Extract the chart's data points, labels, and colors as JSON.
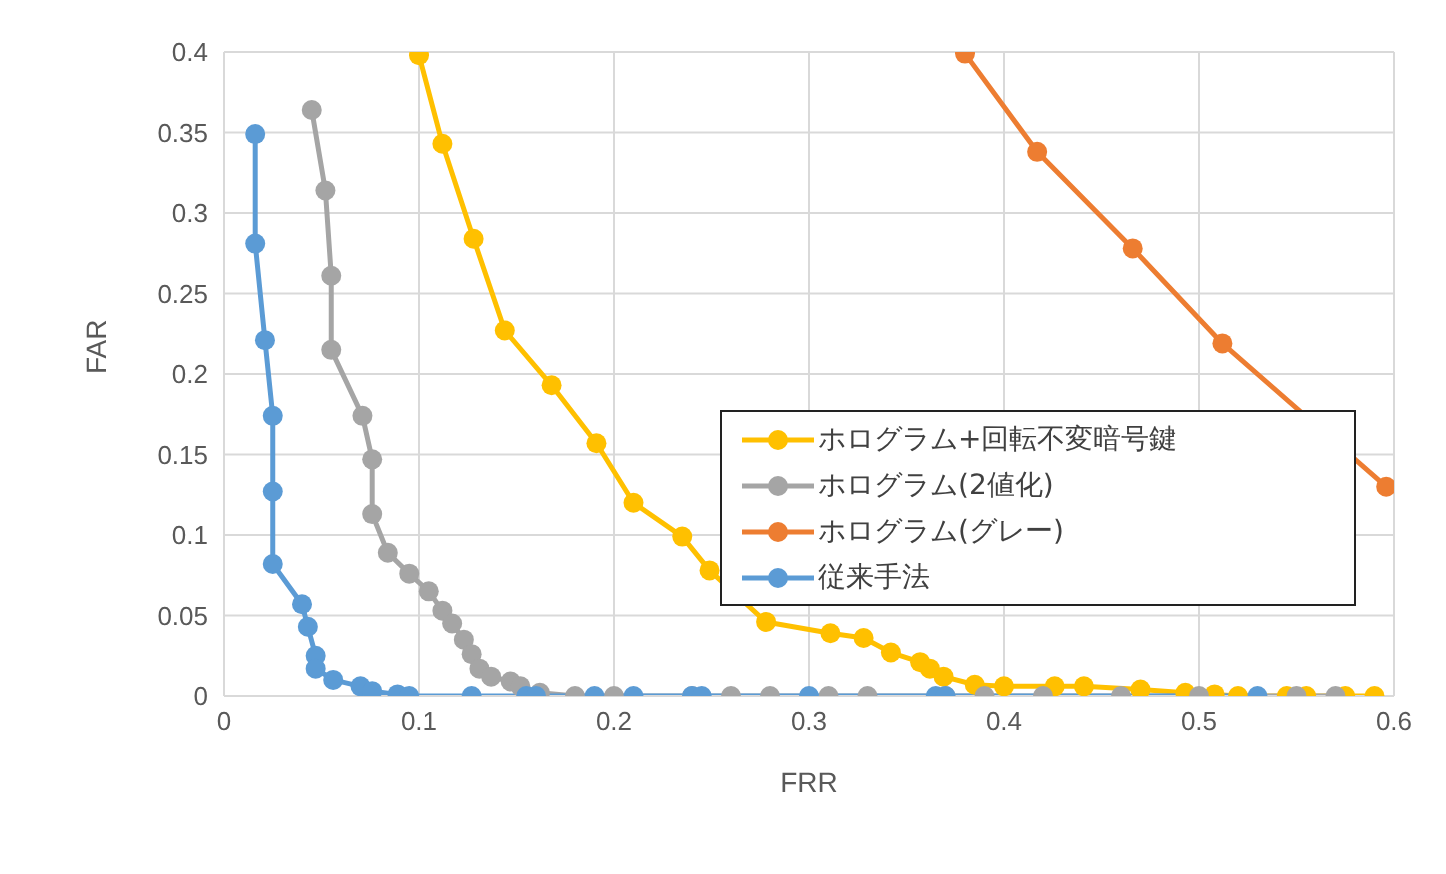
{
  "chart_data": {
    "type": "line",
    "xlabel": "FRR",
    "ylabel": "FAR",
    "xlim": [
      0,
      0.6
    ],
    "ylim": [
      0,
      0.4
    ],
    "xticks": [
      0,
      0.1,
      0.2,
      0.3,
      0.4,
      0.5,
      0.6
    ],
    "yticks": [
      0,
      0.05,
      0.1,
      0.15,
      0.2,
      0.25,
      0.3,
      0.35,
      0.4
    ],
    "grid": true,
    "legend": "right",
    "marker": "circle",
    "series": [
      {
        "name": "ホログラム+回転不変暗号鍵",
        "color": "#ffc000",
        "x": [
          0.1,
          0.112,
          0.128,
          0.144,
          0.168,
          0.191,
          0.21,
          0.235,
          0.249,
          0.278,
          0.311,
          0.328,
          0.342,
          0.357,
          0.362,
          0.369,
          0.385,
          0.4,
          0.426,
          0.441,
          0.47,
          0.493,
          0.508,
          0.52,
          0.545,
          0.555,
          0.575,
          0.59
        ],
        "values": [
          0.398,
          0.343,
          0.284,
          0.227,
          0.193,
          0.157,
          0.12,
          0.099,
          0.078,
          0.046,
          0.039,
          0.036,
          0.027,
          0.021,
          0.017,
          0.012,
          0.007,
          0.006,
          0.006,
          0.006,
          0.004,
          0.002,
          0.001,
          0,
          0,
          0,
          0,
          0
        ]
      },
      {
        "name": "ホログラム(2値化)",
        "color": "#a5a5a5",
        "x": [
          0.045,
          0.052,
          0.055,
          0.055,
          0.071,
          0.076,
          0.076,
          0.084,
          0.095,
          0.105,
          0.112,
          0.117,
          0.123,
          0.127,
          0.131,
          0.137,
          0.147,
          0.152,
          0.162,
          0.18,
          0.2,
          0.24,
          0.26,
          0.28,
          0.31,
          0.33,
          0.37,
          0.39,
          0.42,
          0.46,
          0.5,
          0.55,
          0.57
        ],
        "values": [
          0.364,
          0.314,
          0.261,
          0.215,
          0.174,
          0.147,
          0.113,
          0.089,
          0.076,
          0.065,
          0.053,
          0.045,
          0.035,
          0.026,
          0.017,
          0.012,
          0.009,
          0.006,
          0.002,
          0,
          0,
          0,
          0,
          0,
          0,
          0,
          0,
          0,
          0,
          0,
          0,
          0,
          0
        ]
      },
      {
        "name": "ホログラム(グレー)",
        "color": "#ed7d31",
        "x": [
          0.38,
          0.417,
          0.466,
          0.512,
          0.596
        ],
        "values": [
          0.399,
          0.338,
          0.278,
          0.219,
          0.13
        ]
      },
      {
        "name": "従来手法",
        "color": "#5b9bd5",
        "x": [
          0.016,
          0.016,
          0.021,
          0.025,
          0.025,
          0.025,
          0.04,
          0.043,
          0.047,
          0.047,
          0.056,
          0.07,
          0.076,
          0.089,
          0.095,
          0.127,
          0.155,
          0.16,
          0.19,
          0.21,
          0.24,
          0.245,
          0.3,
          0.365,
          0.37,
          0.53
        ],
        "values": [
          0.349,
          0.281,
          0.221,
          0.174,
          0.127,
          0.082,
          0.057,
          0.043,
          0.025,
          0.017,
          0.01,
          0.006,
          0.003,
          0.001,
          0,
          0,
          0,
          0,
          0,
          0,
          0,
          0,
          0,
          0,
          0,
          0
        ]
      }
    ]
  }
}
